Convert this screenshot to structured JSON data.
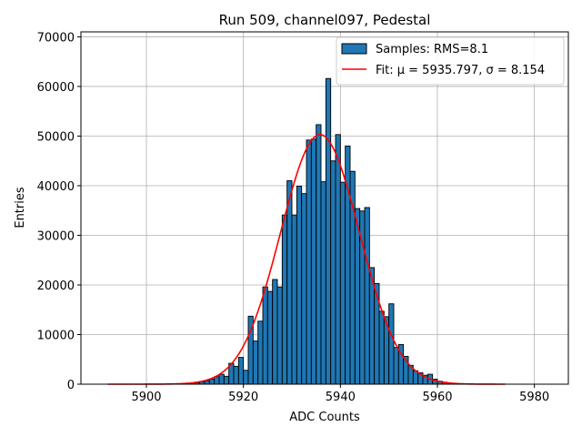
{
  "chart_data": {
    "type": "bar",
    "title": "Run 509, channel097, Pedestal",
    "xlabel": "ADC Counts",
    "ylabel": "Entries",
    "xlim": [
      5886.5,
      5987.0
    ],
    "ylim": [
      0,
      71000
    ],
    "xticks": [
      5900,
      5920,
      5940,
      5960,
      5980
    ],
    "yticks": [
      0,
      10000,
      20000,
      30000,
      40000,
      50000,
      60000,
      70000
    ],
    "grid": true,
    "legend_position": "top-right",
    "colors": {
      "bars": "#1f77b4",
      "bar_edge": "#000000",
      "fit": "#ff0000"
    },
    "histogram": {
      "name": "Samples: RMS=8.1",
      "bin_width": 1,
      "bin_starts": [
        5908,
        5909,
        5910,
        5911,
        5912,
        5913,
        5914,
        5915,
        5916,
        5917,
        5918,
        5919,
        5920,
        5921,
        5922,
        5923,
        5924,
        5925,
        5926,
        5927,
        5928,
        5929,
        5930,
        5931,
        5932,
        5933,
        5934,
        5935,
        5936,
        5937,
        5938,
        5939,
        5940,
        5941,
        5942,
        5943,
        5944,
        5945,
        5946,
        5947,
        5948,
        5949,
        5950,
        5951,
        5952,
        5953,
        5954,
        5955,
        5956,
        5957,
        5958,
        5959,
        5960,
        5961,
        5962,
        5963
      ],
      "counts": [
        100,
        200,
        300,
        500,
        700,
        1000,
        1500,
        2000,
        1600,
        4200,
        3600,
        5400,
        2800,
        13700,
        8700,
        12700,
        19600,
        18700,
        21100,
        19600,
        34100,
        41000,
        34100,
        39900,
        38400,
        49200,
        49400,
        52300,
        40800,
        61600,
        45000,
        50300,
        40700,
        48000,
        42900,
        35400,
        34900,
        35600,
        23500,
        20300,
        14700,
        13600,
        16200,
        7400,
        8000,
        5600,
        3800,
        2700,
        2300,
        1800,
        2000,
        1000,
        600,
        400,
        200,
        100
      ]
    },
    "fit": {
      "name": "Fit: μ = 5935.797, σ = 8.154",
      "mu": 5935.797,
      "sigma": 8.154,
      "amplitude": 50300,
      "x_range": [
        5892,
        5974
      ]
    }
  }
}
